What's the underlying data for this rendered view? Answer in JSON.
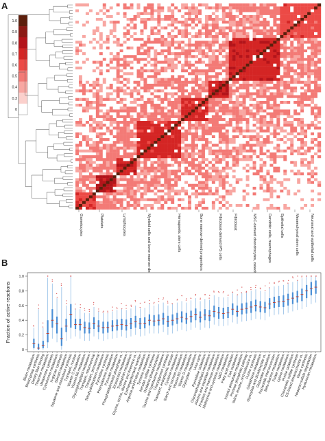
{
  "panel_a": {
    "letter": "A"
  },
  "panel_b": {
    "letter": "B"
  },
  "chart_data": [
    {
      "type": "heatmap",
      "colorbar_ticks": [
        "1.0",
        "0.9",
        "0.8",
        "0.7",
        "0.6",
        "0.5",
        "0.4",
        "0.3",
        "0"
      ],
      "colorbar_colors": [
        "#5c1f0c",
        "#8b1a14",
        "#b3141a",
        "#d42524",
        "#ec4a46",
        "#f37a76",
        "#f8a7a2",
        "#fbd0cc",
        "#ffffff"
      ],
      "dendrogram": true,
      "group_labels": [
        "Gametocytes",
        "Platelets",
        "Lymphocytes",
        "Myeloid cells and bone marrow-derived progenitors",
        "Hemapoetic stem cells",
        "Bone marrow-derived progenitors",
        "Fibroblast-derived iPS cells",
        "Fibroblast",
        "MSC-derived chondrocytes, osteoblasts and adipocytes",
        "Dendritic cells, macrophages",
        "Epithelial cells",
        "Mesenchymal stem cells",
        "Neuronal and epithelial cells"
      ],
      "blocks": [
        {
          "start": 0.0,
          "end": 0.07,
          "value": 0.55
        },
        {
          "start": 0.07,
          "end": 0.16,
          "value": 0.7
        },
        {
          "start": 0.16,
          "end": 0.25,
          "value": 0.62
        },
        {
          "start": 0.25,
          "end": 0.42,
          "value": 0.6
        },
        {
          "start": 0.42,
          "end": 0.53,
          "value": 0.58
        },
        {
          "start": 0.53,
          "end": 0.62,
          "value": 0.65
        },
        {
          "start": 0.62,
          "end": 0.82,
          "value": 0.62
        },
        {
          "start": 0.82,
          "end": 1.0,
          "value": 0.5
        }
      ]
    },
    {
      "type": "box",
      "ylabel": "Fraction of active reactions",
      "ylim": [
        0,
        1
      ],
      "yticks": [
        0,
        0.2,
        0.4,
        0.6,
        0.8,
        1.0
      ],
      "categories": [
        "Biotin metabolism",
        "Blood group synthesis",
        "Dietary fiber binding",
        "Thiamine metabolism",
        "Ubiquinone synthesis",
        "Cytochrome metabolism",
        "N-glycan synthesis",
        "Steroid metabolism",
        "Squalene and cholesterol synthesis",
        "Transport, nuclear",
        "Vitamin C metabolism",
        "Vitamin B6 metabolism",
        "Glycosphingolipid metabolism",
        "Transport, mitochondrial",
        "Transport, peroxisomal",
        "Tetrahydrobiopterin metabolism",
        "Pyrimidine synthesis",
        "Phenylalanine metabolism",
        "Pyruvate metabolism",
        "Phosphatidylinositol phosphate m.",
        "Eicosanoid metabolism",
        "Tryptophan metabolism",
        "Glycine, serine, alanine and threonine m.",
        "Exchange/demand reaction",
        "Arginine and Proline metabolism",
        "Tyrosine metabolism",
        "Keratan sulfate synthesis",
        "Oxidative phosphorylation",
        "Taurine and hypotaurine metabolism",
        "Triacylglycerol synthesis",
        "Transport, endoplasmic reticular",
        "Cysteine metabolism",
        "Starch and sucrose metabolism",
        "Vitamin B2 metabolism",
        "Vitamin D metabolism",
        "Glyoxylate metabolism",
        "Urea cycle",
        "Pyrimidine catabolism",
        "Glycerophospholipid metabolism",
        "Alanine and aspartate metabolism",
        "Fructose and mannose metabolism",
        "Methionine and cysteine metabolism",
        "NAD metabolism",
        "Fatty acid oxidation",
        "CoA catabolism",
        "Inositol phosphate metabolism",
        "Pentose phosphate pathway",
        "Valine, leucine, and isoleucine m.",
        "Purine synthesis",
        "Glutathione metabolism",
        "Glyoxylate and dicarboxylate m.",
        "Glutamate metabolism",
        "Nucleotide interconversion",
        "Beta-Alanine metabolism",
        "Folate metabolism",
        "Lysine metabolism",
        "Purine catabolism",
        "Chondroitin sulfate synthesis",
        "CS-linked tetrasaccharide m.",
        "Heme synthesis",
        "Heparan sulfate degradation",
        "Hyaluronan metabolism"
      ],
      "medians": [
        0.08,
        0.02,
        0.06,
        0.22,
        0.4,
        0.35,
        0.15,
        0.32,
        0.48,
        0.34,
        0.34,
        0.3,
        0.29,
        0.36,
        0.32,
        0.3,
        0.3,
        0.32,
        0.33,
        0.34,
        0.33,
        0.35,
        0.38,
        0.35,
        0.36,
        0.4,
        0.39,
        0.4,
        0.42,
        0.38,
        0.4,
        0.42,
        0.44,
        0.42,
        0.45,
        0.48,
        0.44,
        0.47,
        0.46,
        0.52,
        0.5,
        0.49,
        0.5,
        0.55,
        0.52,
        0.55,
        0.56,
        0.58,
        0.6,
        0.58,
        0.57,
        0.62,
        0.64,
        0.65,
        0.66,
        0.68,
        0.7,
        0.72,
        0.75,
        0.8,
        0.83,
        0.85
      ],
      "q1": [
        0.02,
        0.0,
        0.02,
        0.1,
        0.3,
        0.22,
        0.05,
        0.24,
        0.3,
        0.28,
        0.26,
        0.22,
        0.22,
        0.28,
        0.24,
        0.22,
        0.23,
        0.25,
        0.26,
        0.27,
        0.26,
        0.28,
        0.3,
        0.28,
        0.29,
        0.33,
        0.32,
        0.33,
        0.34,
        0.31,
        0.33,
        0.35,
        0.37,
        0.35,
        0.37,
        0.4,
        0.37,
        0.4,
        0.39,
        0.44,
        0.42,
        0.42,
        0.43,
        0.47,
        0.45,
        0.48,
        0.49,
        0.5,
        0.52,
        0.51,
        0.5,
        0.55,
        0.57,
        0.58,
        0.58,
        0.6,
        0.62,
        0.64,
        0.66,
        0.7,
        0.74,
        0.76
      ],
      "q3": [
        0.15,
        0.08,
        0.12,
        0.4,
        0.55,
        0.45,
        0.3,
        0.42,
        0.62,
        0.42,
        0.42,
        0.38,
        0.37,
        0.44,
        0.4,
        0.38,
        0.38,
        0.4,
        0.41,
        0.42,
        0.41,
        0.43,
        0.46,
        0.43,
        0.44,
        0.48,
        0.47,
        0.48,
        0.5,
        0.46,
        0.48,
        0.5,
        0.52,
        0.5,
        0.53,
        0.56,
        0.52,
        0.55,
        0.54,
        0.6,
        0.58,
        0.57,
        0.58,
        0.63,
        0.6,
        0.63,
        0.64,
        0.66,
        0.68,
        0.66,
        0.65,
        0.7,
        0.72,
        0.73,
        0.74,
        0.76,
        0.78,
        0.8,
        0.83,
        0.88,
        0.92,
        0.94
      ],
      "whisker_low": [
        0.0,
        0.0,
        0.0,
        0.02,
        0.15,
        0.1,
        0.0,
        0.12,
        0.15,
        0.18,
        0.15,
        0.12,
        0.12,
        0.18,
        0.14,
        0.12,
        0.14,
        0.15,
        0.16,
        0.18,
        0.16,
        0.18,
        0.2,
        0.18,
        0.19,
        0.22,
        0.22,
        0.22,
        0.24,
        0.2,
        0.22,
        0.25,
        0.27,
        0.25,
        0.27,
        0.3,
        0.27,
        0.3,
        0.29,
        0.34,
        0.32,
        0.32,
        0.33,
        0.37,
        0.35,
        0.38,
        0.39,
        0.4,
        0.42,
        0.41,
        0.4,
        0.45,
        0.47,
        0.48,
        0.48,
        0.5,
        0.52,
        0.54,
        0.55,
        0.58,
        0.62,
        0.64
      ],
      "whisker_high": [
        0.3,
        0.55,
        0.3,
        0.98,
        0.9,
        0.7,
        0.85,
        0.6,
        1.0,
        0.55,
        0.55,
        0.5,
        0.5,
        0.58,
        0.52,
        0.5,
        0.5,
        0.52,
        0.54,
        0.55,
        0.54,
        0.56,
        0.6,
        0.56,
        0.57,
        0.62,
        0.6,
        0.62,
        0.64,
        0.6,
        0.62,
        0.64,
        0.66,
        0.64,
        0.67,
        0.7,
        0.66,
        0.69,
        0.68,
        0.74,
        0.72,
        0.71,
        0.72,
        0.77,
        0.74,
        0.77,
        0.78,
        0.8,
        0.82,
        0.8,
        0.79,
        0.84,
        0.86,
        0.87,
        0.88,
        0.9,
        0.92,
        0.94,
        0.97,
        1.0,
        1.0,
        1.0
      ]
    }
  ]
}
